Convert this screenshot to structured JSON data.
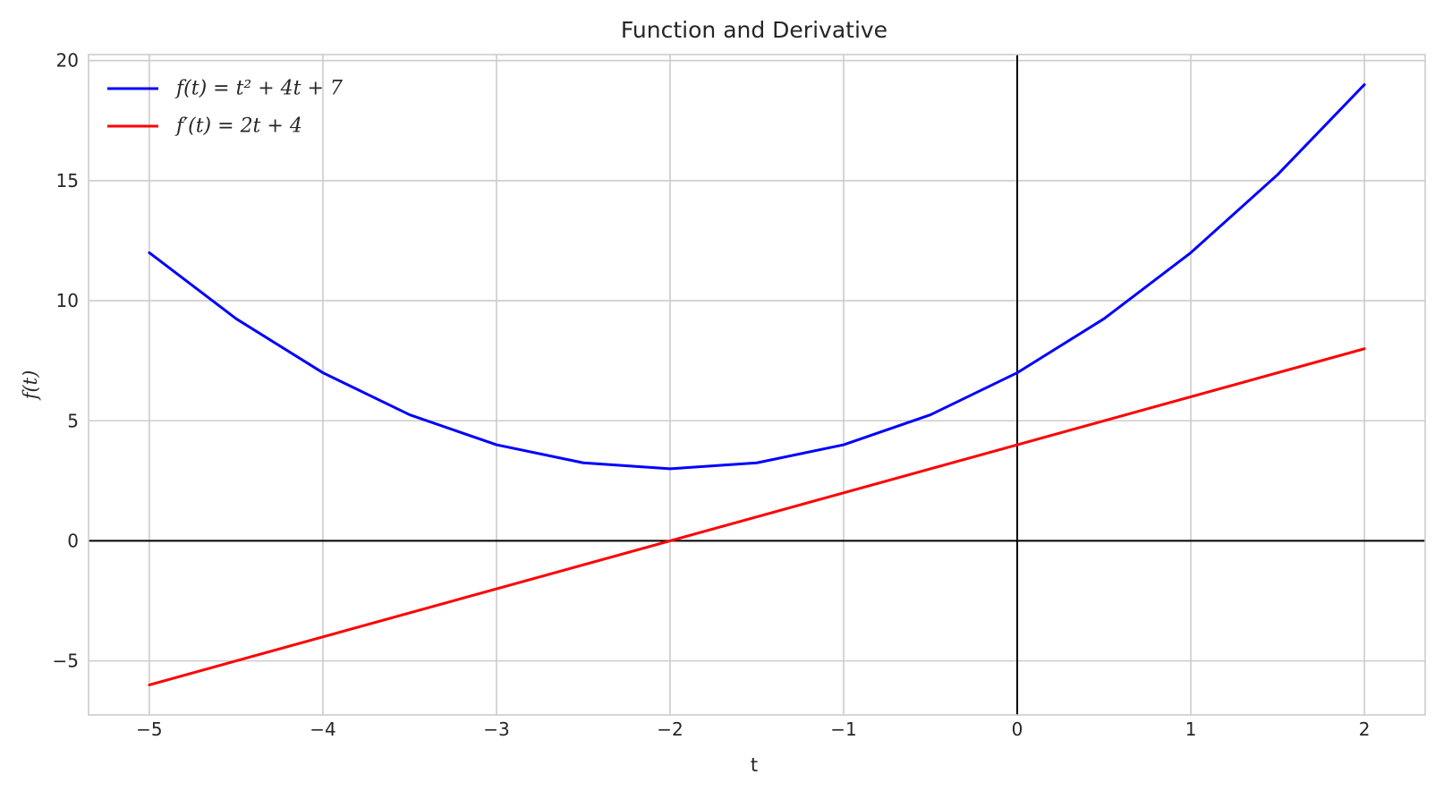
{
  "chart_data": {
    "type": "line",
    "title": "Function and Derivative",
    "xlabel": "t",
    "ylabel": "f(t)",
    "xlim": [
      -5.35,
      2.35
    ],
    "ylim": [
      -7.25,
      20.25
    ],
    "xticks": [
      -5,
      -4,
      -3,
      -2,
      -1,
      0,
      1,
      2
    ],
    "yticks": [
      -5,
      0,
      5,
      10,
      15,
      20
    ],
    "xtick_labels": [
      "−5",
      "−4",
      "−3",
      "−2",
      "−1",
      "0",
      "1",
      "2"
    ],
    "ytick_labels": [
      "−5",
      "0",
      "5",
      "10",
      "15",
      "20"
    ],
    "grid": true,
    "legend_position": "top-left",
    "series": [
      {
        "name": "f(t) = t² + 4t + 7",
        "color": "#0000ff",
        "x": [
          -5,
          -4.5,
          -4,
          -3.5,
          -3,
          -2.5,
          -2,
          -1.5,
          -1,
          -0.5,
          0,
          0.5,
          1,
          1.5,
          2
        ],
        "y": [
          12,
          9.25,
          7,
          5.25,
          4,
          3.25,
          3,
          3.25,
          4,
          5.25,
          7,
          9.25,
          12,
          15.25,
          19
        ]
      },
      {
        "name": "f′(t) = 2t + 4",
        "color": "#ff0000",
        "x": [
          -5,
          2
        ],
        "y": [
          -6,
          8
        ]
      }
    ],
    "reference_lines": {
      "x": 0,
      "y": 0,
      "color": "#000000"
    }
  }
}
